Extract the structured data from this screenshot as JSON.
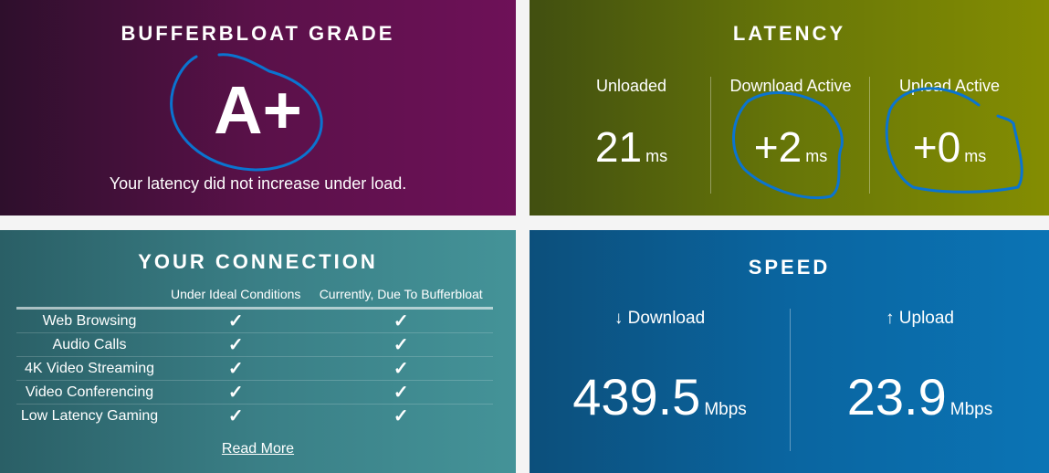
{
  "grade": {
    "title": "BUFFERBLOAT GRADE",
    "value": "A+",
    "message": "Your latency did not increase under load."
  },
  "latency": {
    "title": "LATENCY",
    "items": [
      {
        "label": "Unloaded",
        "value": "21",
        "unit": "ms"
      },
      {
        "label": "Download Active",
        "value": "+2",
        "unit": "ms"
      },
      {
        "label": "Upload Active",
        "value": "+0",
        "unit": "ms"
      }
    ]
  },
  "connection": {
    "title": "YOUR CONNECTION",
    "headers": [
      "",
      "Under Ideal Conditions",
      "Currently, Due To Bufferbloat"
    ],
    "rows": [
      {
        "label": "Web Browsing",
        "ideal": "✓",
        "current": "✓"
      },
      {
        "label": "Audio Calls",
        "ideal": "✓",
        "current": "✓"
      },
      {
        "label": "4K Video Streaming",
        "ideal": "✓",
        "current": "✓"
      },
      {
        "label": "Video Conferencing",
        "ideal": "✓",
        "current": "✓"
      },
      {
        "label": "Low Latency Gaming",
        "ideal": "✓",
        "current": "✓"
      }
    ],
    "read_more": "Read More"
  },
  "speed": {
    "title": "SPEED",
    "download": {
      "label": "↓ Download",
      "value": "439.5",
      "unit": "Mbps"
    },
    "upload": {
      "label": "↑ Upload",
      "value": "23.9",
      "unit": "Mbps"
    }
  },
  "annotation_color": "#0a74d0"
}
